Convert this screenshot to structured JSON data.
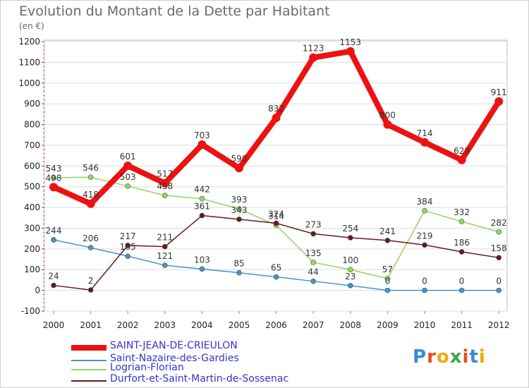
{
  "title": "Evolution du Montant de la Dette par Habitant",
  "subtitle": "(en €)",
  "logo": {
    "text": "Proxiti",
    "colors": [
      "#3a8ad8",
      "#e84c1c",
      "#f5a800",
      "#3aa64a",
      "#e84c1c",
      "#3a8ad8",
      "#f5a800"
    ]
  },
  "chart_data": {
    "type": "line",
    "title": "Evolution du Montant de la Dette par Habitant",
    "subtitle": "(en €)",
    "xlabel": "",
    "ylabel": "",
    "x": [
      "2000",
      "2001",
      "2002",
      "2003",
      "2004",
      "2005",
      "2006",
      "2007",
      "2008",
      "2009",
      "2010",
      "2011",
      "2012"
    ],
    "ylim": [
      -100,
      1200
    ],
    "yticks": [
      -100,
      0,
      100,
      200,
      300,
      400,
      500,
      600,
      700,
      800,
      900,
      1000,
      1100,
      1200
    ],
    "grid": "horizontal",
    "legend_position": "bottom-left",
    "series": [
      {
        "name": "SAINT-JEAN-DE-CRIEULON",
        "color": "#ee1111",
        "width": 8,
        "marker": 6,
        "values": [
          498,
          418,
          601,
          517,
          703,
          590,
          832,
          1123,
          1153,
          800,
          714,
          629,
          911
        ],
        "labels": [
          "498",
          "418",
          "601",
          "517",
          "703",
          "590",
          "832",
          "1123",
          "1153",
          "800",
          "714",
          "629",
          "911"
        ]
      },
      {
        "name": "Saint-Nazaire-des-Gardies",
        "color": "#4a90c8",
        "width": 1.5,
        "marker": 3.5,
        "values": [
          244,
          206,
          165,
          121,
          103,
          85,
          65,
          44,
          23,
          0,
          0,
          0,
          0
        ],
        "labels": [
          "244",
          "206",
          "165",
          "121",
          "103",
          "85",
          "65",
          "44",
          "23",
          "0",
          "0",
          "0",
          "0"
        ]
      },
      {
        "name": "Logrian-Florian",
        "color": "#8ed860",
        "width": 1.5,
        "marker": 3.5,
        "values": [
          543,
          546,
          503,
          458,
          442,
          393,
          314,
          135,
          100,
          57,
          384,
          332,
          282
        ],
        "labels": [
          "543",
          "546",
          "503",
          "458",
          "442",
          "393",
          "314",
          "135",
          "100",
          "57",
          "384",
          "332",
          "282"
        ]
      },
      {
        "name": "Durfort-et-Saint-Martin-de-Sossenac",
        "color": "#661a1a",
        "width": 1.5,
        "marker": 3.5,
        "values": [
          24,
          2,
          217,
          211,
          361,
          343,
          324,
          273,
          254,
          241,
          219,
          186,
          158
        ],
        "labels": [
          "24",
          "2",
          "217",
          "211",
          "361",
          "343",
          "324",
          "273",
          "254",
          "241",
          "219",
          "186",
          "158"
        ]
      }
    ]
  }
}
